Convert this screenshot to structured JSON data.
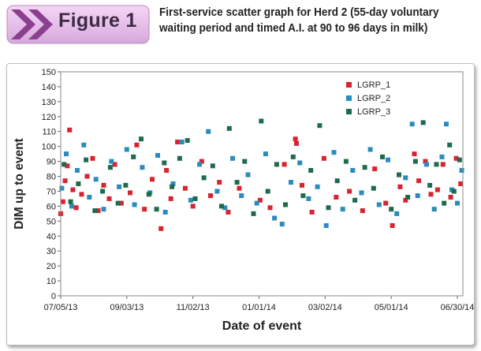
{
  "header": {
    "figure_label": "Figure 1",
    "caption": "First-service scatter graph for Herd 2 (55-day voluntary waiting period and timed A.I. at 90 to 96 days in milk)"
  },
  "chart_data": {
    "type": "scatter",
    "xlabel": "Date of event",
    "ylabel": "DIM up to event",
    "x_ticks": [
      "07/05/13",
      "09/03/13",
      "11/02/13",
      "01/01/14",
      "03/02/14",
      "05/01/14",
      "06/30/14"
    ],
    "xlim": [
      "07/05/13",
      "07/05/14"
    ],
    "ylim": [
      0,
      150
    ],
    "y_ticks": [
      0,
      10,
      20,
      30,
      40,
      50,
      60,
      70,
      80,
      90,
      100,
      110,
      120,
      130,
      140,
      150
    ],
    "legend_position": "top-right-inside",
    "grid": false,
    "series": [
      {
        "name": "LGRP_1",
        "color": "#d9232e",
        "points": [
          [
            "07/05/13",
            55
          ],
          [
            "07/07/13",
            63
          ],
          [
            "07/09/13",
            77
          ],
          [
            "07/11/13",
            87
          ],
          [
            "07/13/13",
            111
          ],
          [
            "07/16/13",
            71
          ],
          [
            "07/19/13",
            59
          ],
          [
            "07/24/13",
            68
          ],
          [
            "07/29/13",
            80
          ],
          [
            "08/03/13",
            92
          ],
          [
            "08/08/13",
            57
          ],
          [
            "08/13/13",
            74
          ],
          [
            "08/18/13",
            65
          ],
          [
            "08/23/13",
            88
          ],
          [
            "08/29/13",
            62
          ],
          [
            "09/06/13",
            69
          ],
          [
            "09/12/13",
            101
          ],
          [
            "09/19/13",
            58
          ],
          [
            "09/26/13",
            78
          ],
          [
            "10/04/13",
            45
          ],
          [
            "10/09/13",
            84
          ],
          [
            "10/13/13",
            65
          ],
          [
            "10/19/13",
            103
          ],
          [
            "10/26/13",
            72
          ],
          [
            "11/02/13",
            60
          ],
          [
            "11/10/13",
            90
          ],
          [
            "11/18/13",
            67
          ],
          [
            "11/26/13",
            76
          ],
          [
            "12/04/13",
            56
          ],
          [
            "12/14/13",
            72
          ],
          [
            "01/02/14",
            64
          ],
          [
            "01/11/14",
            59
          ],
          [
            "01/24/14",
            88
          ],
          [
            "02/03/14",
            105
          ],
          [
            "02/04/14",
            102
          ],
          [
            "02/09/14",
            74
          ],
          [
            "02/18/14",
            56
          ],
          [
            "03/01/14",
            92
          ],
          [
            "03/12/14",
            66
          ],
          [
            "03/24/14",
            70
          ],
          [
            "04/05/14",
            57
          ],
          [
            "04/16/14",
            85
          ],
          [
            "04/26/14",
            62
          ],
          [
            "05/02/14",
            47
          ],
          [
            "05/09/14",
            73
          ],
          [
            "05/14/14",
            64
          ],
          [
            "05/22/14",
            95
          ],
          [
            "05/26/14",
            77
          ],
          [
            "06/01/14",
            90
          ],
          [
            "06/06/14",
            68
          ],
          [
            "06/12/14",
            71
          ],
          [
            "06/17/14",
            88
          ],
          [
            "06/24/14",
            66
          ],
          [
            "06/29/14",
            92
          ],
          [
            "07/03/14",
            75
          ]
        ]
      },
      {
        "name": "LGRP_2",
        "color": "#2b8bbd",
        "points": [
          [
            "07/06/13",
            72
          ],
          [
            "07/10/13",
            95
          ],
          [
            "07/15/13",
            60
          ],
          [
            "07/20/13",
            84
          ],
          [
            "07/26/13",
            101
          ],
          [
            "07/31/13",
            66
          ],
          [
            "08/06/13",
            78
          ],
          [
            "08/13/13",
            58
          ],
          [
            "08/20/13",
            90
          ],
          [
            "08/27/13",
            73
          ],
          [
            "09/03/13",
            98
          ],
          [
            "09/10/13",
            61
          ],
          [
            "09/17/13",
            86
          ],
          [
            "09/24/13",
            69
          ],
          [
            "10/01/13",
            94
          ],
          [
            "10/08/13",
            56
          ],
          [
            "10/15/13",
            75
          ],
          [
            "10/23/13",
            103
          ],
          [
            "10/31/13",
            64
          ],
          [
            "11/08/13",
            88
          ],
          [
            "11/16/13",
            110
          ],
          [
            "11/24/13",
            70
          ],
          [
            "12/01/13",
            59
          ],
          [
            "12/08/13",
            92
          ],
          [
            "12/16/13",
            67
          ],
          [
            "12/22/13",
            81
          ],
          [
            "12/30/13",
            62
          ],
          [
            "01/07/14",
            95
          ],
          [
            "01/15/14",
            52
          ],
          [
            "01/22/14",
            48
          ],
          [
            "01/30/14",
            76
          ],
          [
            "02/07/14",
            89
          ],
          [
            "02/15/14",
            65
          ],
          [
            "02/23/14",
            73
          ],
          [
            "03/03/14",
            47
          ],
          [
            "03/10/14",
            96
          ],
          [
            "03/18/14",
            58
          ],
          [
            "03/27/14",
            84
          ],
          [
            "04/04/14",
            69
          ],
          [
            "04/12/14",
            98
          ],
          [
            "04/20/14",
            61
          ],
          [
            "04/28/14",
            91
          ],
          [
            "05/06/14",
            55
          ],
          [
            "05/14/14",
            79
          ],
          [
            "05/20/14",
            115
          ],
          [
            "05/25/14",
            67
          ],
          [
            "06/02/14",
            88
          ],
          [
            "06/09/14",
            58
          ],
          [
            "06/16/14",
            93
          ],
          [
            "06/20/14",
            115
          ],
          [
            "06/25/14",
            71
          ],
          [
            "06/30/14",
            62
          ],
          [
            "07/04/14",
            84
          ]
        ]
      },
      {
        "name": "LGRP_3",
        "color": "#1e6b4a",
        "points": [
          [
            "07/08/13",
            88
          ],
          [
            "07/14/13",
            63
          ],
          [
            "07/21/13",
            75
          ],
          [
            "07/28/13",
            91
          ],
          [
            "08/05/13",
            57
          ],
          [
            "08/12/13",
            70
          ],
          [
            "08/19/13",
            86
          ],
          [
            "08/26/13",
            62
          ],
          [
            "09/02/13",
            74
          ],
          [
            "09/09/13",
            93
          ],
          [
            "09/16/13",
            105
          ],
          [
            "09/23/13",
            68
          ],
          [
            "09/30/13",
            58
          ],
          [
            "10/07/13",
            89
          ],
          [
            "10/14/13",
            73
          ],
          [
            "10/21/13",
            92
          ],
          [
            "10/28/13",
            104
          ],
          [
            "11/04/13",
            65
          ],
          [
            "11/12/13",
            79
          ],
          [
            "11/20/13",
            87
          ],
          [
            "11/28/13",
            60
          ],
          [
            "12/05/13",
            112
          ],
          [
            "12/12/13",
            76
          ],
          [
            "12/19/13",
            90
          ],
          [
            "12/27/13",
            55
          ],
          [
            "01/03/14",
            117
          ],
          [
            "01/09/14",
            70
          ],
          [
            "01/17/14",
            88
          ],
          [
            "01/25/14",
            61
          ],
          [
            "02/01/14",
            93
          ],
          [
            "02/10/14",
            67
          ],
          [
            "02/17/14",
            84
          ],
          [
            "02/25/14",
            114
          ],
          [
            "03/05/14",
            59
          ],
          [
            "03/13/14",
            77
          ],
          [
            "03/21/14",
            90
          ],
          [
            "03/29/14",
            64
          ],
          [
            "04/07/14",
            86
          ],
          [
            "04/15/14",
            72
          ],
          [
            "04/23/14",
            93
          ],
          [
            "05/01/14",
            58
          ],
          [
            "05/08/14",
            81
          ],
          [
            "05/16/14",
            66
          ],
          [
            "05/23/14",
            90
          ],
          [
            "05/30/14",
            116
          ],
          [
            "06/05/14",
            74
          ],
          [
            "06/11/14",
            88
          ],
          [
            "06/18/14",
            62
          ],
          [
            "06/23/14",
            101
          ],
          [
            "06/27/14",
            70
          ],
          [
            "07/02/14",
            91
          ]
        ]
      }
    ]
  }
}
